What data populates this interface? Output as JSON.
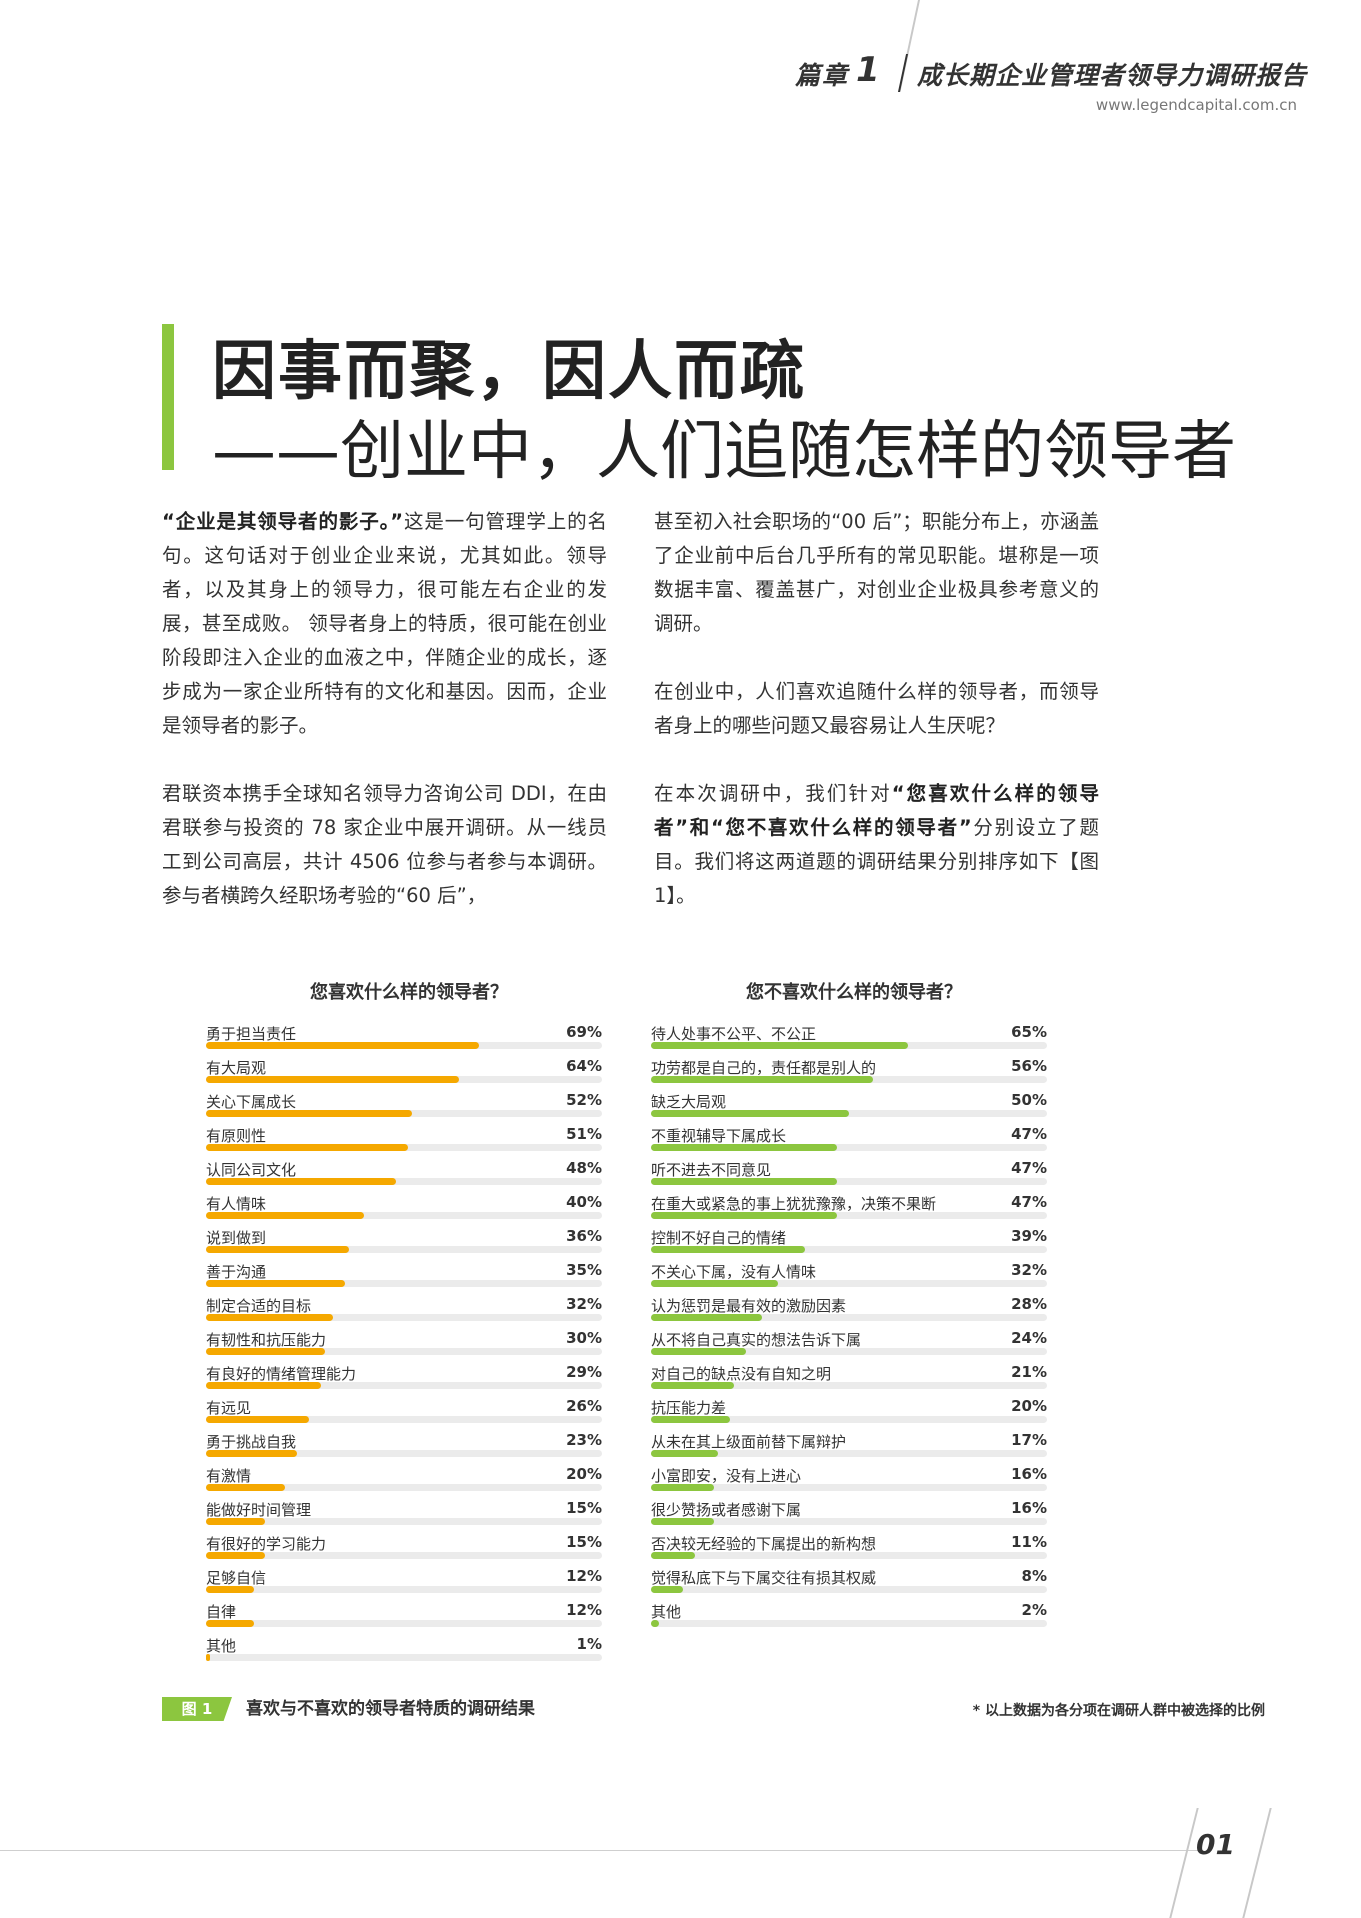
{
  "header": {
    "chapter_label": "篇章",
    "chapter_num": "1",
    "report_title": "成长期企业管理者领导力调研报告",
    "url": "www.legendcapital.com.cn"
  },
  "title": {
    "line1": "因事而聚，因人而疏",
    "line2": "——创业中，人们追随怎样的领导者"
  },
  "body": {
    "p1_quote": "“企业是其领导者的影子。”",
    "p1_rest": "这是一句管理学上的名句。这句话对于创业企业来说，尤其如此。领导者，以及其身上的领导力，很可能左右企业的发展，甚至成败。 领导者身上的特质，很可能在创业阶段即注入企业的血液之中，伴随企业的成长，逐步成为一家企业所特有的文化和基因。因而，企业是领导者的影子。",
    "p2": "君联资本携手全球知名领导力咨询公司 DDI，在由君联参与投资的 78 家企业中展开调研。从一线员工到公司高层，共计 4506 位参与者参与本调研。参与者横跨久经职场考验的“60 后”，甚至初入社会职场的“00 后”；职能分布上，亦涵盖了企业前中后台几乎所有的常见职能。堪称是一项数据丰富、覆盖甚广，对创业企业极具参考意义的调研。",
    "p3": "在创业中，人们喜欢追随什么样的领导者，而领导者身上的哪些问题又最容易让人生厌呢？",
    "p4_a": "在本次调研中，我们针对",
    "p4_b": "“您喜欢什么样的领导者”",
    "p4_c": "和",
    "p4_d": "“您不喜欢什么样的领导者”",
    "p4_e": "分别设立了题目。我们将这两道题的调研结果分别排序如下【图 1】。"
  },
  "chart_data": [
    {
      "type": "bar",
      "orientation": "horizontal",
      "title": "您喜欢什么样的领导者？",
      "color": "#f5a800",
      "unit": "%",
      "ylim": [
        0,
        100
      ],
      "categories": [
        "勇于担当责任",
        "有大局观",
        "关心下属成长",
        "有原则性",
        "认同公司文化",
        "有人情味",
        "说到做到",
        "善于沟通",
        "制定合适的目标",
        "有韧性和抗压能力",
        "有良好的情绪管理能力",
        "有远见",
        "勇于挑战自我",
        "有激情",
        "能做好时间管理",
        "有很好的学习能力",
        "足够自信",
        "自律",
        "其他"
      ],
      "values": [
        69,
        64,
        52,
        51,
        48,
        40,
        36,
        35,
        32,
        30,
        29,
        26,
        23,
        20,
        15,
        15,
        12,
        12,
        1
      ],
      "labels": [
        "69%",
        "64%",
        "52%",
        "51%",
        "48%",
        "40%",
        "36%",
        "35%",
        "32%",
        "30%",
        "29%",
        "26%",
        "23%",
        "20%",
        "15%",
        "15%",
        "12%",
        "12%",
        "1%"
      ]
    },
    {
      "type": "bar",
      "orientation": "horizontal",
      "title": "您不喜欢什么样的领导者？",
      "color": "#8cc63f",
      "unit": "%",
      "ylim": [
        0,
        100
      ],
      "categories": [
        "待人处事不公平、不公正",
        "功劳都是自己的，责任都是别人的",
        "缺乏大局观",
        "不重视辅导下属成长",
        "听不进去不同意见",
        "在重大或紧急的事上犹犹豫豫，决策不果断",
        "控制不好自己的情绪",
        "不关心下属，没有人情味",
        "认为惩罚是最有效的激励因素",
        "从不将自己真实的想法告诉下属",
        "对自己的缺点没有自知之明",
        "抗压能力差",
        "从未在其上级面前替下属辩护",
        "小富即安，没有上进心",
        "很少赞扬或者感谢下属",
        "否决较无经验的下属提出的新构想",
        "觉得私底下与下属交往有损其权威",
        "其他"
      ],
      "values": [
        65,
        56,
        50,
        47,
        47,
        47,
        39,
        32,
        28,
        24,
        21,
        20,
        17,
        16,
        16,
        11,
        8,
        2
      ],
      "labels": [
        "65%",
        "56%",
        "50%",
        "47%",
        "47%",
        "47%",
        "39%",
        "32%",
        "28%",
        "24%",
        "21%",
        "20%",
        "17%",
        "16%",
        "16%",
        "11%",
        "8%",
        "2%"
      ]
    }
  ],
  "figure": {
    "tag": "图 1",
    "caption": "喜欢与不喜欢的领导者特质的调研结果",
    "note": "* 以上数据为各分项在调研人群中被选择的比例"
  },
  "footer": {
    "page_number": "01"
  }
}
